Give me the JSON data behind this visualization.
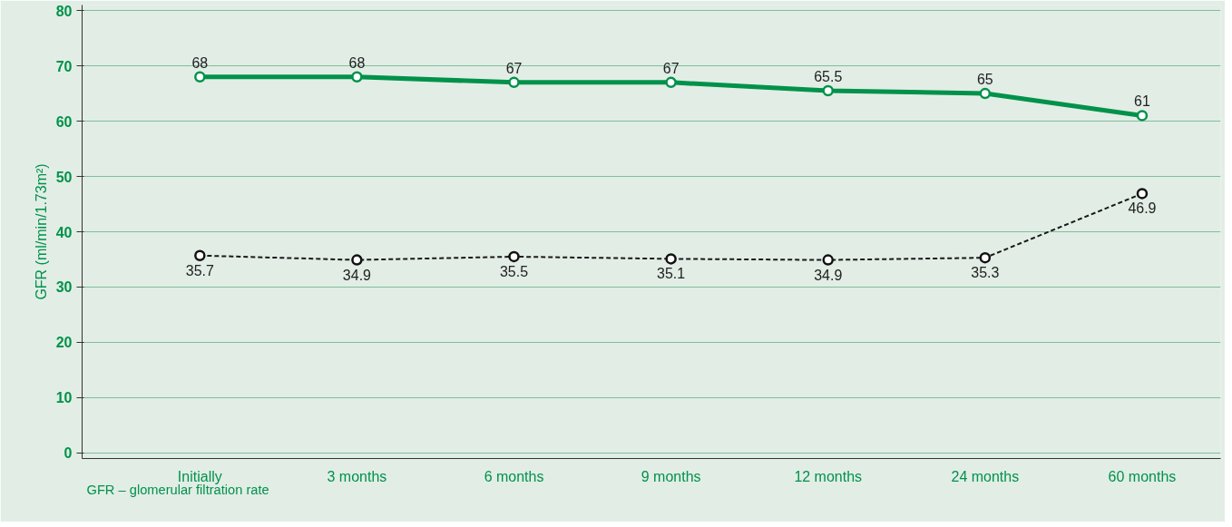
{
  "chart_data": {
    "type": "line",
    "ylabel": "GFR (ml/min/1.73m²)",
    "categories": [
      "Initially",
      "3 months",
      "6 months",
      "9 months",
      "12 months",
      "24 months",
      "60 months"
    ],
    "series": [
      {
        "color": "#00924a",
        "values": [
          68,
          68,
          67,
          67,
          65.5,
          65,
          61
        ],
        "line_style": "solid"
      },
      {
        "color": "#1a1a1a",
        "values": [
          35.7,
          34.9,
          35.5,
          35.1,
          34.9,
          35.3,
          46.9
        ],
        "line_style": "dashed"
      }
    ],
    "ylim": [
      -1,
      81
    ],
    "yticks": [
      0,
      10,
      20,
      30,
      40,
      50,
      60,
      70,
      80
    ],
    "grid": "y",
    "marker": "circle",
    "data_labels": true,
    "annotations": [
      "GFR – glomerular filtration rate"
    ]
  }
}
